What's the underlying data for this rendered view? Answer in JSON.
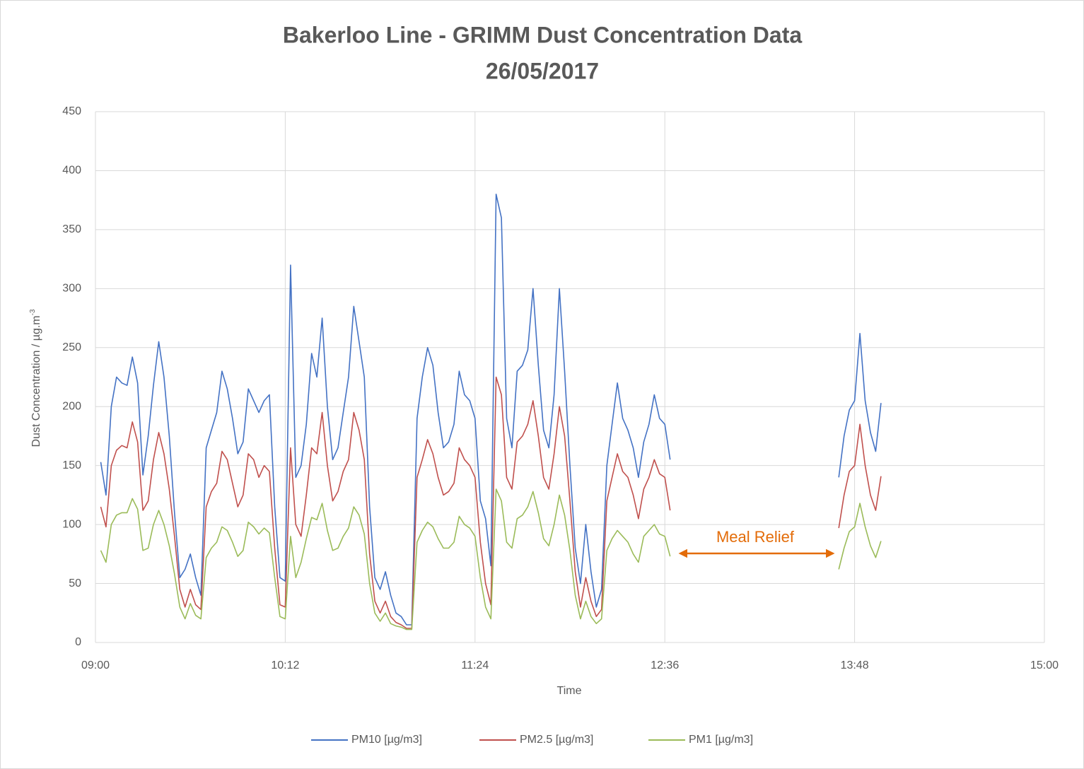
{
  "chart_data": {
    "type": "line",
    "title": "Bakerloo Line  - GRIMM Dust Concentration Data",
    "subtitle": "26/05/2017",
    "x_label": "Time",
    "y_label": "Dust Concentration / µg.m",
    "y_label_sup": "-3",
    "annotation": "Meal Relief",
    "annotation_color": "#E36C09",
    "grid": true,
    "legend": "bottom",
    "xlim": [
      "09:00",
      "15:00"
    ],
    "xticks": [
      "09:00",
      "10:12",
      "11:24",
      "12:36",
      "13:48",
      "15:00"
    ],
    "ylim": [
      0,
      450
    ],
    "yticks": [
      0,
      50,
      100,
      150,
      200,
      250,
      300,
      350,
      400,
      450
    ],
    "x": [
      "09:02",
      "09:04",
      "09:06",
      "09:08",
      "09:10",
      "09:12",
      "09:14",
      "09:16",
      "09:18",
      "09:20",
      "09:22",
      "09:24",
      "09:26",
      "09:28",
      "09:30",
      "09:32",
      "09:34",
      "09:36",
      "09:38",
      "09:40",
      "09:42",
      "09:44",
      "09:46",
      "09:48",
      "09:50",
      "09:52",
      "09:54",
      "09:56",
      "09:58",
      "10:00",
      "10:02",
      "10:04",
      "10:06",
      "10:08",
      "10:10",
      "10:12",
      "10:14",
      "10:16",
      "10:18",
      "10:20",
      "10:22",
      "10:24",
      "10:26",
      "10:28",
      "10:30",
      "10:32",
      "10:34",
      "10:36",
      "10:38",
      "10:40",
      "10:42",
      "10:44",
      "10:46",
      "10:48",
      "10:50",
      "10:52",
      "10:54",
      "10:56",
      "10:58",
      "11:00",
      "11:02",
      "11:04",
      "11:06",
      "11:08",
      "11:10",
      "11:12",
      "11:14",
      "11:16",
      "11:18",
      "11:20",
      "11:22",
      "11:24",
      "11:26",
      "11:28",
      "11:30",
      "11:32",
      "11:34",
      "11:36",
      "11:38",
      "11:40",
      "11:42",
      "11:44",
      "11:46",
      "11:48",
      "11:50",
      "11:52",
      "11:54",
      "11:56",
      "11:58",
      "12:00",
      "12:02",
      "12:04",
      "12:06",
      "12:08",
      "12:10",
      "12:12",
      "12:14",
      "12:16",
      "12:18",
      "12:20",
      "12:22",
      "12:24",
      "12:26",
      "12:28",
      "12:30",
      "12:32",
      "12:34",
      "12:36",
      "12:38",
      "13:00",
      "13:42",
      "13:44",
      "13:46",
      "13:48",
      "13:50",
      "13:52",
      "13:54",
      "13:56",
      "13:58"
    ],
    "series": [
      {
        "name": "PM10 [µg/m3]",
        "color": "#4472C4",
        "values": [
          153,
          125,
          200,
          225,
          220,
          218,
          242,
          220,
          142,
          175,
          218,
          255,
          225,
          175,
          110,
          55,
          62,
          75,
          55,
          40,
          165,
          180,
          195,
          230,
          215,
          190,
          160,
          170,
          215,
          205,
          195,
          205,
          210,
          115,
          55,
          52,
          320,
          140,
          150,
          185,
          245,
          225,
          275,
          200,
          155,
          165,
          195,
          225,
          285,
          255,
          225,
          115,
          55,
          45,
          60,
          40,
          25,
          22,
          15,
          15,
          190,
          225,
          250,
          235,
          195,
          165,
          170,
          185,
          230,
          210,
          205,
          190,
          120,
          105,
          65,
          380,
          360,
          190,
          165,
          230,
          235,
          248,
          300,
          235,
          180,
          165,
          210,
          300,
          230,
          150,
          80,
          50,
          100,
          60,
          30,
          45,
          150,
          185,
          220,
          190,
          180,
          165,
          140,
          170,
          185,
          210,
          190,
          185,
          155,
          null,
          140,
          175,
          197,
          205,
          262,
          205,
          178,
          162,
          203
        ]
      },
      {
        "name": "PM2.5 [µg/m3]",
        "color": "#C0504D",
        "values": [
          115,
          98,
          150,
          163,
          167,
          165,
          187,
          170,
          112,
          120,
          155,
          178,
          160,
          130,
          90,
          45,
          30,
          45,
          32,
          28,
          115,
          128,
          135,
          162,
          155,
          135,
          115,
          125,
          160,
          155,
          140,
          150,
          145,
          80,
          32,
          30,
          165,
          100,
          90,
          125,
          165,
          160,
          195,
          150,
          120,
          128,
          145,
          155,
          195,
          180,
          155,
          75,
          35,
          25,
          35,
          22,
          17,
          15,
          12,
          12,
          140,
          155,
          172,
          160,
          140,
          125,
          128,
          135,
          165,
          155,
          150,
          140,
          85,
          50,
          32,
          225,
          210,
          140,
          130,
          170,
          175,
          185,
          205,
          175,
          140,
          130,
          160,
          200,
          175,
          120,
          60,
          30,
          55,
          35,
          22,
          28,
          120,
          140,
          160,
          145,
          140,
          125,
          105,
          130,
          140,
          155,
          143,
          140,
          112,
          null,
          97,
          125,
          145,
          150,
          185,
          150,
          125,
          112,
          141
        ]
      },
      {
        "name": "PM1 [µg/m3]",
        "color": "#9BBB59",
        "values": [
          78,
          68,
          100,
          108,
          110,
          110,
          122,
          113,
          78,
          80,
          100,
          112,
          100,
          82,
          58,
          30,
          20,
          33,
          23,
          20,
          72,
          80,
          85,
          98,
          95,
          85,
          73,
          78,
          102,
          98,
          92,
          97,
          93,
          55,
          22,
          20,
          90,
          55,
          68,
          88,
          106,
          104,
          118,
          95,
          78,
          80,
          90,
          97,
          115,
          108,
          92,
          50,
          25,
          18,
          25,
          16,
          14,
          13,
          11,
          11,
          85,
          95,
          102,
          98,
          88,
          80,
          80,
          85,
          107,
          100,
          97,
          90,
          55,
          30,
          20,
          130,
          120,
          85,
          80,
          105,
          108,
          115,
          128,
          110,
          88,
          82,
          100,
          125,
          108,
          78,
          40,
          20,
          35,
          22,
          16,
          20,
          78,
          88,
          95,
          90,
          85,
          75,
          68,
          90,
          95,
          100,
          92,
          90,
          73,
          null,
          62,
          80,
          94,
          98,
          118,
          98,
          82,
          72,
          86
        ]
      }
    ]
  }
}
